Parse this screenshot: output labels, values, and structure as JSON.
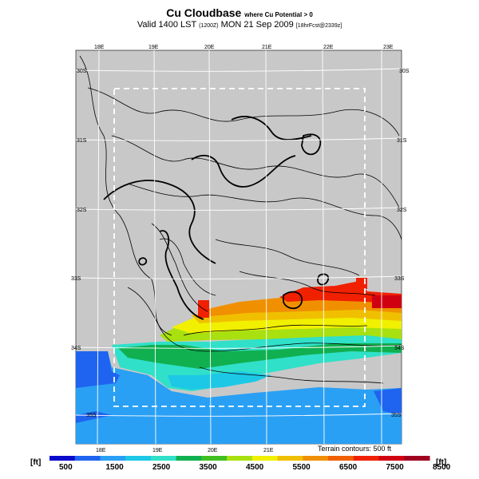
{
  "title": "Cu Cloudbase",
  "title_suffix": "where Cu Potential > 0",
  "subtitle_main": "Valid 1400 LST",
  "subtitle_time": "(1200Z)",
  "subtitle_date": "MON 21 Sep 2009",
  "subtitle_fcst": "[18hrFcst@2339z]",
  "terrain_note": "Terrain contours: 500 ft",
  "lon_labels": [
    "18E",
    "19E",
    "20E",
    "21E",
    "22E",
    "23E"
  ],
  "lat_labels": [
    "30S",
    "31S",
    "32S",
    "33S",
    "34S",
    "35S"
  ],
  "colorbar": {
    "unit": "[ft]",
    "labels": [
      "500",
      "1500",
      "2500",
      "3500",
      "4500",
      "5500",
      "6500",
      "7500",
      "8500"
    ],
    "colors": [
      "#0a0acc",
      "#1e64f0",
      "#2aa0f5",
      "#1dc8e6",
      "#30e0c8",
      "#10b050",
      "#40c020",
      "#a8e010",
      "#f0f000",
      "#f0c000",
      "#f09000",
      "#f06000",
      "#f02000",
      "#d00010",
      "#a00020"
    ]
  }
}
